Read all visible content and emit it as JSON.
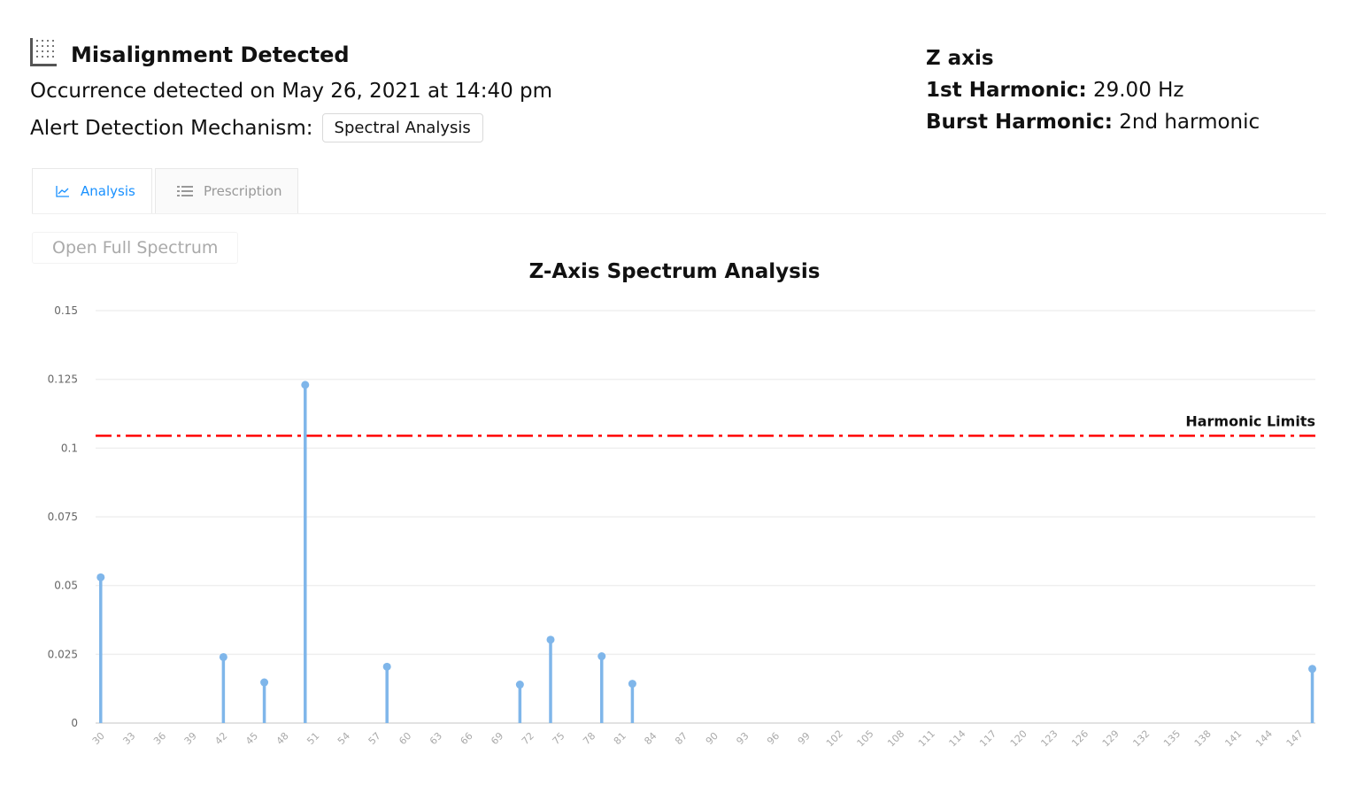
{
  "alert": {
    "icon": "grid-dots-icon",
    "title": "Misalignment Detected",
    "occurrence": "Occurrence detected on May 26, 2021 at 14:40 pm",
    "mechanism_label": "Alert Detection Mechanism:",
    "mechanism_value": "Spectral Analysis"
  },
  "axis_info": {
    "axis": "Z axis",
    "first_harmonic_label": "1st Harmonic:",
    "first_harmonic_value": "29.00 Hz",
    "burst_harmonic_label": "Burst Harmonic:",
    "burst_harmonic_value": "2nd harmonic"
  },
  "tabs": [
    {
      "label": "Analysis",
      "icon": "line-chart-icon",
      "active": true
    },
    {
      "label": "Prescription",
      "icon": "list-icon",
      "active": false
    }
  ],
  "open_full_spectrum": "Open Full Spectrum",
  "colors": {
    "accent": "#1890ff",
    "stem": "#7fb6ea",
    "limit_line": "#ff0000"
  },
  "chart_data": {
    "type": "stem",
    "title": "Z-Axis Spectrum Analysis",
    "xlabel": "",
    "ylabel": "",
    "x_ticks": [
      "30",
      "33",
      "36",
      "39",
      "42",
      "45",
      "48",
      "51",
      "54",
      "57",
      "60",
      "63",
      "66",
      "69",
      "72",
      "75",
      "78",
      "81",
      "84",
      "87",
      "90",
      "93",
      "96",
      "99",
      "102",
      "105",
      "108",
      "111",
      "114",
      "117",
      "120",
      "123",
      "126",
      "129",
      "132",
      "135",
      "138",
      "141",
      "144",
      "147"
    ],
    "y_ticks": [
      "0",
      "0.025",
      "0.05",
      "0.075",
      "0.1",
      "0.125",
      "0.15"
    ],
    "ylim": [
      0,
      0.15
    ],
    "xlim": [
      29.5,
      148.8
    ],
    "grid": true,
    "points": [
      {
        "x": 30,
        "y": 0.053
      },
      {
        "x": 42,
        "y": 0.024
      },
      {
        "x": 46,
        "y": 0.0148
      },
      {
        "x": 50,
        "y": 0.123
      },
      {
        "x": 58,
        "y": 0.0205
      },
      {
        "x": 71,
        "y": 0.014
      },
      {
        "x": 74,
        "y": 0.0303
      },
      {
        "x": 79,
        "y": 0.0243
      },
      {
        "x": 82,
        "y": 0.0143
      },
      {
        "x": 148.5,
        "y": 0.0197
      }
    ],
    "threshold": {
      "label": "Harmonic Limits",
      "y": 0.1045
    }
  }
}
